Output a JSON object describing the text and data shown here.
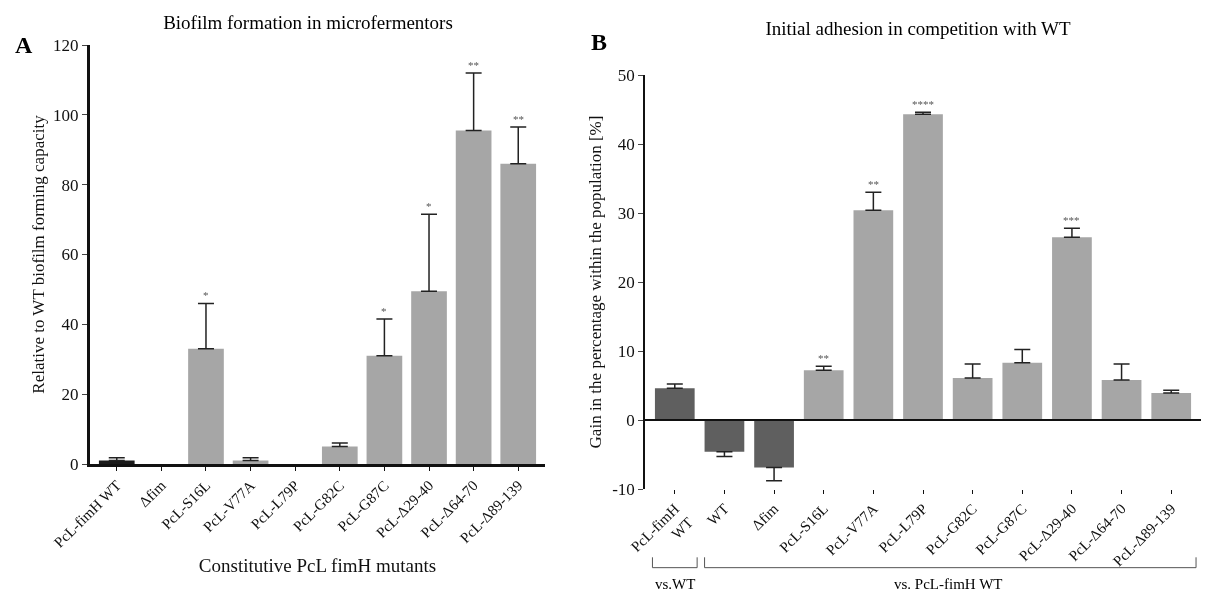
{
  "chart_data": [
    {
      "type": "bar",
      "title": "Biofilm formation in microfermentors",
      "xlabel": "Constitutive PcL fimH mutants",
      "ylabel": "Relative to WT biofilm forming capacity",
      "categories": [
        "PcL-fimH WT",
        "Δfim",
        "PcL-S16L",
        "PcL-V77A",
        "PcL-L79P",
        "PcL-G82C",
        "PcL-G87C",
        "PcL-Δ29-40",
        "PcL-Δ64-70",
        "PcL-Δ89-139"
      ],
      "values": [
        1.0,
        null,
        33,
        1.0,
        null,
        5,
        31,
        49.5,
        95.5,
        86
      ],
      "errors": [
        [
          1.0,
          1.8
        ],
        null,
        [
          33,
          46
        ],
        [
          1.0,
          1.8
        ],
        null,
        [
          5,
          6
        ],
        [
          31,
          41.5
        ],
        [
          49.5,
          71.5
        ],
        [
          95.5,
          112
        ],
        [
          86,
          96.5
        ]
      ],
      "colors": [
        "#1a1a1a",
        "#a6a6a6",
        "#a6a6a6",
        "#a6a6a6",
        "#a6a6a6",
        "#a6a6a6",
        "#a6a6a6",
        "#a6a6a6",
        "#a6a6a6",
        "#a6a6a6"
      ],
      "ylim": [
        0,
        120
      ],
      "yticks": [
        0,
        20,
        40,
        60,
        80,
        100,
        120
      ],
      "grid": false,
      "annotations": [
        "A",
        {
          "text": "*",
          "x": "PcL-S16L",
          "y": 46
        },
        {
          "text": "*",
          "x": "PcL-G87C",
          "y": 41.5
        },
        {
          "text": "*",
          "x": "PcL-Δ29-40",
          "y": 71.5
        },
        {
          "text": "**",
          "x": "PcL-Δ64-70",
          "y": 112
        },
        {
          "text": "**",
          "x": "PcL-Δ89-139",
          "y": 96.5
        }
      ]
    },
    {
      "type": "bar",
      "title": "Initial adhesion in competition with WT",
      "ylabel": "Gain in the percentage within the population [%]",
      "categories": [
        "PcL-fimH\nWT",
        "WT",
        "Δfim",
        "PcL-S16L",
        "PcL-V77A",
        "PcL-L79P",
        "PcL-G82C",
        "PcL-G87C",
        "PcL-Δ29-40",
        "PcL-Δ64-70",
        "PcL-Δ89-139"
      ],
      "values": [
        4.6,
        -4.6,
        -6.9,
        7.2,
        30.4,
        44.3,
        6.1,
        8.3,
        26.5,
        5.8,
        3.9
      ],
      "errors": [
        [
          4.6,
          5.2
        ],
        [
          -5.3,
          -4.6
        ],
        [
          -8.8,
          -6.9
        ],
        [
          7.2,
          7.8
        ],
        [
          30.4,
          33
        ],
        [
          44.3,
          44.6
        ],
        [
          6.1,
          8.1
        ],
        [
          8.3,
          10.2
        ],
        [
          26.5,
          27.8
        ],
        [
          5.8,
          8.1
        ],
        [
          3.9,
          4.3
        ]
      ],
      "ref_lines": [
        {
          "axis": "y",
          "value": 0
        }
      ],
      "colors": [
        "#5f5f5f",
        "#5f5f5f",
        "#5f5f5f",
        "#a6a6a6",
        "#a6a6a6",
        "#a6a6a6",
        "#a6a6a6",
        "#a6a6a6",
        "#a6a6a6",
        "#a6a6a6",
        "#a6a6a6"
      ],
      "ylim": [
        -10,
        50
      ],
      "yticks": [
        -10,
        0,
        10,
        20,
        30,
        40,
        50
      ],
      "grid": false,
      "annotations": [
        "B",
        "vs.WT",
        "vs. PcL-fimH WT",
        {
          "text": "**",
          "x": "PcL-S16L",
          "y": 7.8
        },
        {
          "text": "**",
          "x": "PcL-V77A",
          "y": 33
        },
        {
          "text": "****",
          "x": "PcL-L79P",
          "y": 44.6
        },
        {
          "text": "***",
          "x": "PcL-Δ29-40",
          "y": 27.8
        }
      ]
    }
  ]
}
